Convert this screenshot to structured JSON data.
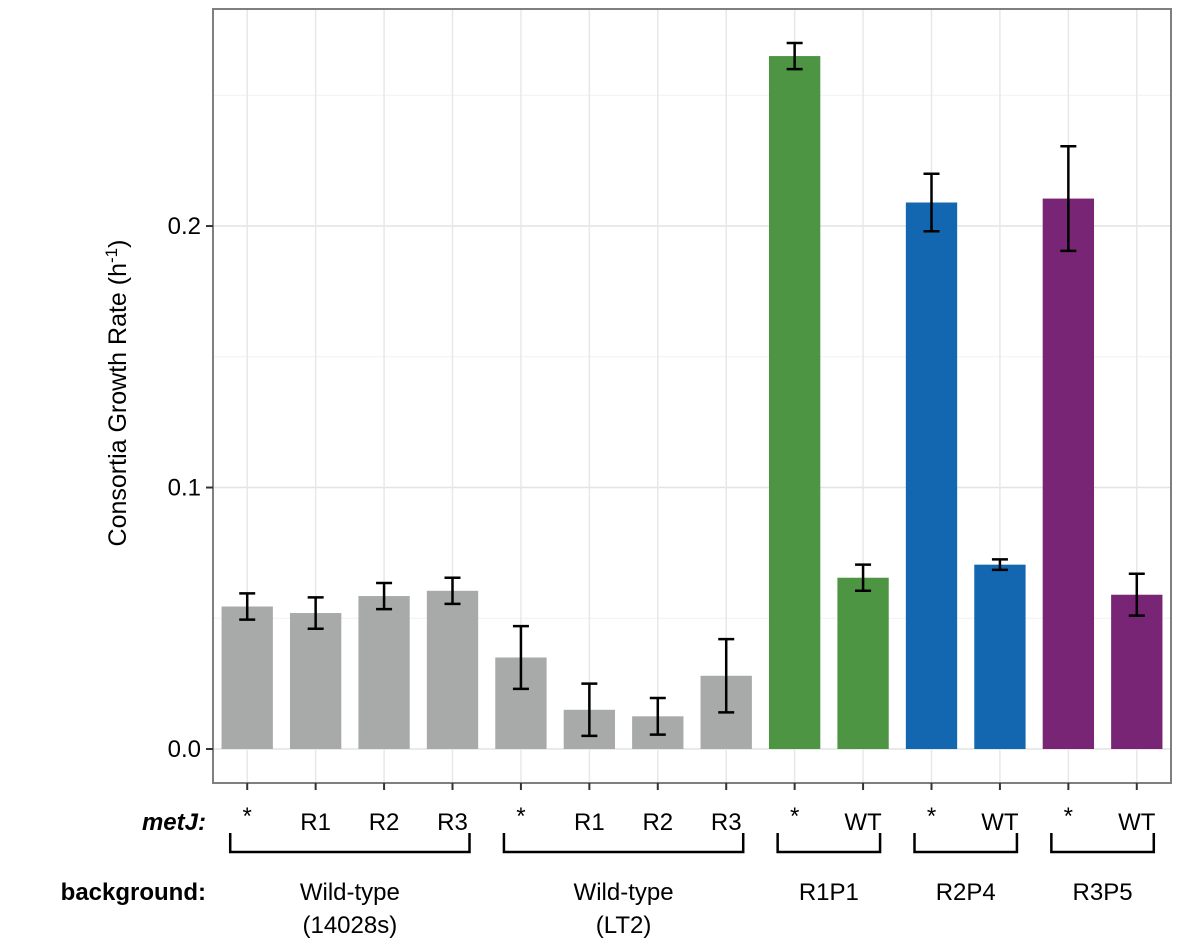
{
  "chart_data": {
    "type": "bar",
    "ylabel": "Consortia Growth Rate (h⁻¹)",
    "ylim": [
      -0.013,
      0.283
    ],
    "yticks": [
      0.0,
      0.1,
      0.2
    ],
    "ytick_labels": [
      "0.0",
      "0.1",
      "0.2"
    ],
    "grid": true,
    "row_labels": {
      "metj": "metJ:",
      "background": "background:"
    },
    "colors": {
      "grey": "#a8a9a9",
      "green": "#4d9443",
      "blue": "#1367b0",
      "purple": "#772574"
    },
    "bars": [
      {
        "metj": "*",
        "value": 0.0545,
        "err": 0.005,
        "color": "grey"
      },
      {
        "metj": "R1",
        "value": 0.052,
        "err": 0.006,
        "color": "grey"
      },
      {
        "metj": "R2",
        "value": 0.0585,
        "err": 0.005,
        "color": "grey"
      },
      {
        "metj": "R3",
        "value": 0.0605,
        "err": 0.005,
        "color": "grey"
      },
      {
        "metj": "*",
        "value": 0.035,
        "err": 0.012,
        "color": "grey"
      },
      {
        "metj": "R1",
        "value": 0.015,
        "err": 0.01,
        "color": "grey"
      },
      {
        "metj": "R2",
        "value": 0.0125,
        "err": 0.007,
        "color": "grey"
      },
      {
        "metj": "R3",
        "value": 0.028,
        "err": 0.014,
        "color": "grey"
      },
      {
        "metj": "*",
        "value": 0.265,
        "err": 0.005,
        "color": "green"
      },
      {
        "metj": "WT",
        "value": 0.0655,
        "err": 0.005,
        "color": "green"
      },
      {
        "metj": "*",
        "value": 0.209,
        "err": 0.011,
        "color": "blue"
      },
      {
        "metj": "WT",
        "value": 0.0705,
        "err": 0.002,
        "color": "blue"
      },
      {
        "metj": "*",
        "value": 0.2105,
        "err": 0.02,
        "color": "purple"
      },
      {
        "metj": "WT",
        "value": 0.059,
        "err": 0.008,
        "color": "purple"
      }
    ],
    "groups": [
      {
        "lines": [
          "Wild-type",
          "(14028s)"
        ],
        "from": 0,
        "to": 3
      },
      {
        "lines": [
          "Wild-type",
          "(LT2)"
        ],
        "from": 4,
        "to": 7
      },
      {
        "lines": [
          "R1P1"
        ],
        "from": 8,
        "to": 9
      },
      {
        "lines": [
          "R2P4"
        ],
        "from": 10,
        "to": 11
      },
      {
        "lines": [
          "R3P5"
        ],
        "from": 12,
        "to": 13
      }
    ]
  }
}
